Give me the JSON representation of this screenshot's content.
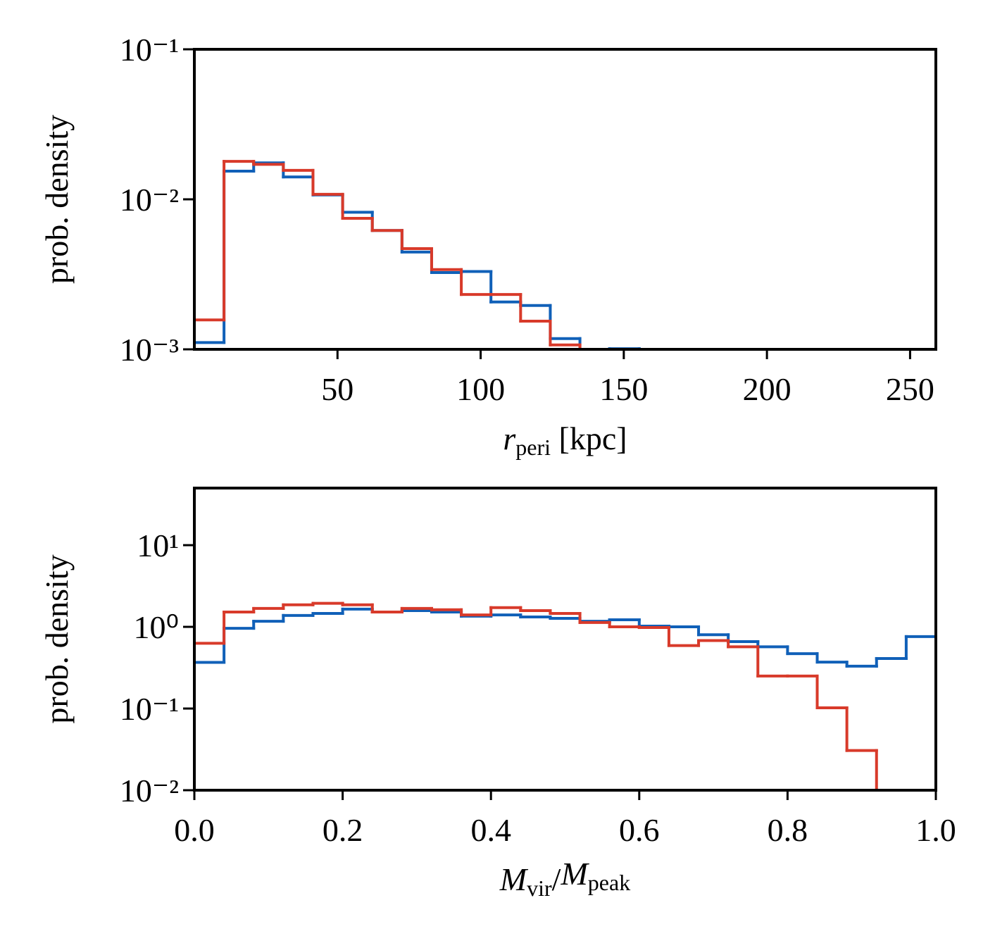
{
  "chart_data": [
    {
      "type": "histogram",
      "log_y": true,
      "xlabel": [
        "r",
        "peri",
        " [kpc]"
      ],
      "ylabel": "prob. density",
      "bins": [
        0,
        10.36,
        20.72,
        31.08,
        41.44,
        51.8,
        62.16,
        72.52,
        82.88,
        93.24,
        103.6,
        113.96,
        124.32,
        134.68,
        145.04,
        155.4,
        165.76,
        176.12,
        186.48,
        196.84,
        207.2,
        217.56,
        227.92,
        238.28,
        248.64,
        259
      ],
      "series": [
        {
          "color": "#1060b8",
          "values": [
            0.00111,
            0.0154,
            0.0175,
            0.0141,
            0.0107,
            0.0082,
            0.0062,
            0.00445,
            0.00325,
            0.0033,
            0.00207,
            0.00196,
            0.00118,
            0.00098,
            0.00101,
            0,
            0,
            0,
            0,
            0,
            0,
            0,
            0,
            0,
            0
          ]
        },
        {
          "color": "#d83a2a",
          "values": [
            0.00157,
            0.0179,
            0.0171,
            0.0156,
            0.0108,
            0.00747,
            0.0062,
            0.00469,
            0.0034,
            0.00232,
            0.00232,
            0.00154,
            0.00107,
            0,
            0,
            0,
            0,
            0,
            0,
            0,
            0,
            0,
            0,
            0,
            0
          ]
        }
      ],
      "xlim": [
        0,
        259
      ],
      "xticks": [
        50,
        100,
        150,
        200,
        250
      ],
      "ylim": [
        0.001,
        0.1
      ],
      "yticks": [
        {
          "value": 0.001,
          "label": "10⁻³"
        },
        {
          "value": 0.01,
          "label": "10⁻²"
        },
        {
          "value": 0.1,
          "label": "10⁻¹"
        }
      ]
    },
    {
      "type": "histogram",
      "log_y": true,
      "xlabel": [
        "M",
        "vir",
        "/",
        "M",
        "peak"
      ],
      "ylabel": "prob. density",
      "bins": [
        0,
        0.04,
        0.08,
        0.12,
        0.16,
        0.2,
        0.24,
        0.28,
        0.32,
        0.36,
        0.4,
        0.44,
        0.48,
        0.52,
        0.56,
        0.6,
        0.64,
        0.68,
        0.72,
        0.76,
        0.8,
        0.84,
        0.88,
        0.92,
        0.96,
        1.0
      ],
      "series": [
        {
          "color": "#1060b8",
          "values": [
            0.367,
            0.96,
            1.17,
            1.38,
            1.46,
            1.65,
            1.52,
            1.58,
            1.52,
            1.35,
            1.4,
            1.32,
            1.27,
            1.17,
            1.22,
            1.02,
            1.0,
            0.8,
            0.66,
            0.57,
            0.47,
            0.37,
            0.33,
            0.41,
            0.76
          ]
        },
        {
          "color": "#d83a2a",
          "values": [
            0.63,
            1.52,
            1.68,
            1.86,
            1.94,
            1.86,
            1.52,
            1.68,
            1.62,
            1.4,
            1.72,
            1.58,
            1.46,
            1.13,
            1.0,
            0.98,
            0.59,
            0.68,
            0.57,
            0.25,
            0.25,
            0.102,
            0.0306,
            0,
            0
          ]
        }
      ],
      "xlim": [
        0,
        1
      ],
      "xticks": [
        {
          "value": 0,
          "label": "0.0"
        },
        0.2,
        0.4,
        0.6,
        0.8,
        {
          "value": 1,
          "label": "1.0"
        }
      ],
      "ylim": [
        0.01,
        50
      ],
      "yticks": [
        {
          "value": 0.01,
          "label": "10⁻²"
        },
        {
          "value": 0.1,
          "label": "10⁻¹"
        },
        {
          "value": 1,
          "label": "10⁰"
        },
        {
          "value": 10,
          "label": "10¹"
        }
      ]
    }
  ]
}
